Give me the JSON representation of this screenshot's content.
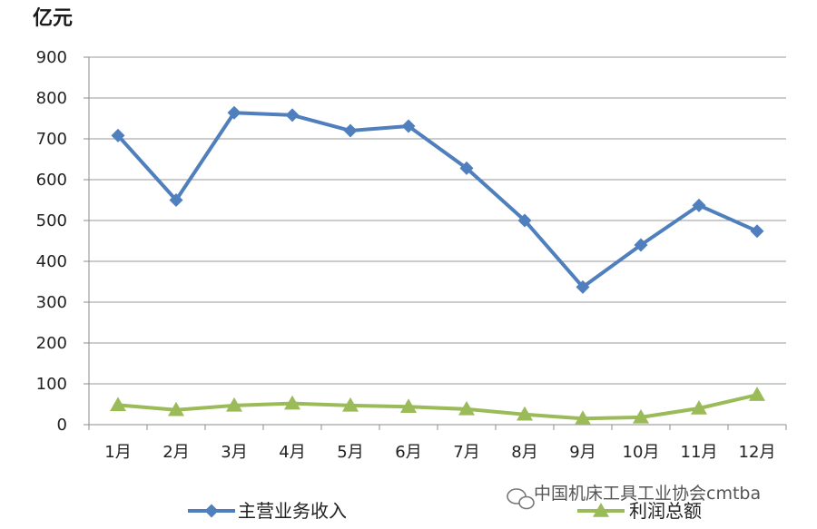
{
  "chart_data": {
    "type": "line",
    "unit_label": "亿元",
    "categories": [
      "1月",
      "2月",
      "3月",
      "4月",
      "5月",
      "6月",
      "7月",
      "8月",
      "9月",
      "10月",
      "11月",
      "12月"
    ],
    "ylim": [
      0,
      900
    ],
    "yticks": [
      0,
      100,
      200,
      300,
      400,
      500,
      600,
      700,
      800,
      900
    ],
    "grid": true,
    "legend_position": "bottom",
    "series": [
      {
        "name": "主营业务收入",
        "color": "#4f7fbd",
        "marker": "diamond",
        "values": [
          708,
          550,
          764,
          758,
          720,
          731,
          628,
          500,
          337,
          440,
          537,
          474
        ]
      },
      {
        "name": "利润总额",
        "color": "#9bbb59",
        "marker": "triangle",
        "values": [
          48,
          36,
          47,
          52,
          47,
          44,
          38,
          25,
          15,
          18,
          40,
          73
        ]
      }
    ]
  },
  "watermark": {
    "icon": "wechat-icon",
    "text": "中国机床工具工业协会cmtba"
  }
}
